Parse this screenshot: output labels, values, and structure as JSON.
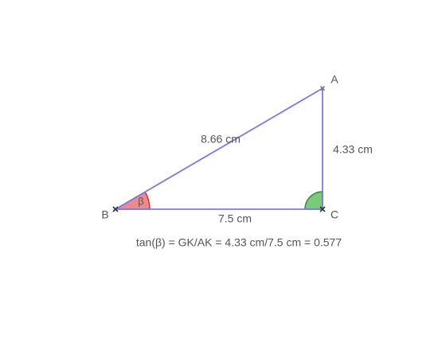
{
  "points": {
    "A": "A",
    "B": "B",
    "C": "C"
  },
  "sides": {
    "hypotenuse": "8.66 cm",
    "opposite": "4.33 cm",
    "adjacent": "7.5 cm"
  },
  "angle_label": "β",
  "formula": "tan(β) = GK/AK = 4.33 cm/7.5 cm = 0.577"
}
